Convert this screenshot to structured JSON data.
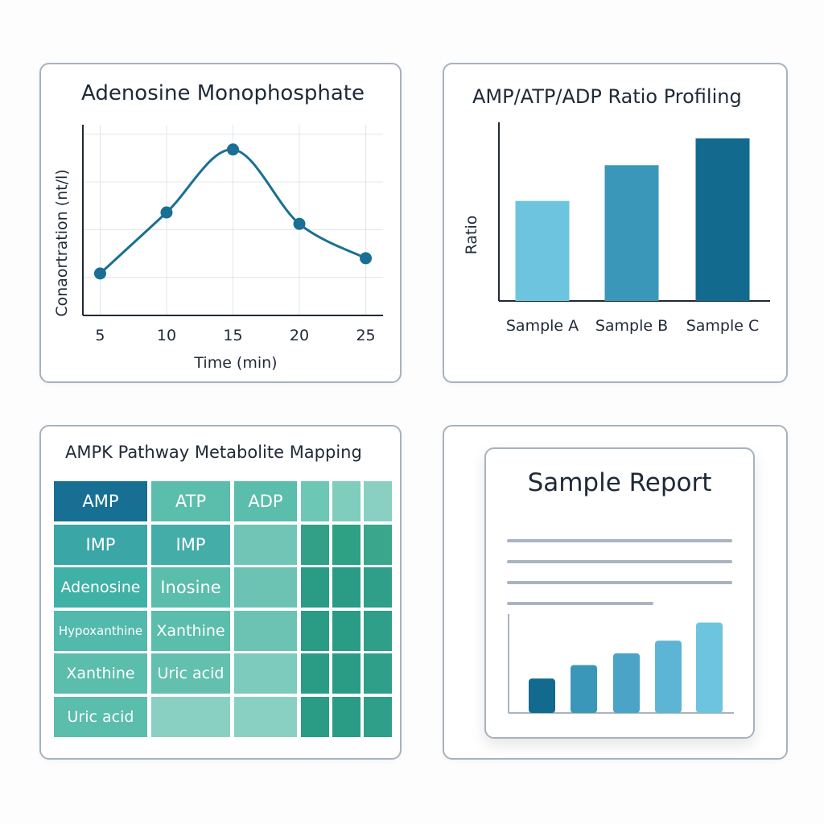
{
  "colors": {
    "dark": "#126a8e",
    "mid": "#3a97ba",
    "light": "#6cc4de",
    "line": "#1a6f95",
    "teal_dark": "#2a9c86",
    "teal_mid": "#5bbdab",
    "teal_light": "#89d0c2",
    "teal_label": "#3fb1a6"
  },
  "chart_data": [
    {
      "type": "line",
      "title": "Adenosine Monophosphate",
      "xlabel": "Time (min)",
      "ylabel": "Conaortration (nt/l)",
      "x": [
        5,
        10,
        15,
        20,
        25
      ],
      "x_ticks": [
        "5",
        "10",
        "15",
        "20",
        "25"
      ],
      "values": [
        0.22,
        0.54,
        0.87,
        0.48,
        0.3
      ],
      "ylim": [
        0,
        1
      ],
      "grid": true
    },
    {
      "type": "bar",
      "title": "AMP/ATP/ADP Ratio Profiling",
      "xlabel": "",
      "ylabel": "Ratio",
      "categories": [
        "Sample A",
        "Sample B",
        "Sample C"
      ],
      "values": [
        0.56,
        0.76,
        0.91
      ],
      "ylim": [
        0,
        1
      ],
      "bar_colors": [
        "#6cc4de",
        "#3a97ba",
        "#126a8e"
      ]
    },
    {
      "type": "heatmap",
      "title": "AMPK Pathway Metabolite Mapping",
      "rows": [
        [
          "AMP",
          "ATP",
          "ADP",
          "",
          "",
          ""
        ],
        [
          "IMP",
          "IMP",
          "",
          "",
          "",
          ""
        ],
        [
          "Adenosine",
          "Inosine",
          "",
          "",
          "",
          ""
        ],
        [
          "Hypoxanthine",
          "Xanthine",
          "",
          "",
          "",
          ""
        ],
        [
          "Xanthine",
          "Uric acid",
          "",
          "",
          "",
          ""
        ],
        [
          "Uric acid",
          "",
          "",
          "",
          "",
          ""
        ]
      ],
      "cell_colors": [
        [
          "#176f93",
          "#5bbdab",
          "#5bbdab",
          "#6cc7b5",
          "#7fcdbd",
          "#89d0c2"
        ],
        [
          "#3aa6a6",
          "#44ada8",
          "#71c5b6",
          "#31a087",
          "#2ea083",
          "#3aa68c"
        ],
        [
          "#3fb1a6",
          "#5bbdab",
          "#6cc3b4",
          "#2a9c86",
          "#2a9c86",
          "#2f9f89"
        ],
        [
          "#52b9ac",
          "#5bbdab",
          "#6cc3b4",
          "#2a9c86",
          "#2a9c86",
          "#2f9f89"
        ],
        [
          "#5bbdab",
          "#63c0ae",
          "#7ccbbd",
          "#2a9c86",
          "#2a9c86",
          "#2f9f89"
        ],
        [
          "#5bbdab",
          "#89d0c2",
          "#89d0c2",
          "#2a9c86",
          "#2a9c86",
          "#2f9f89"
        ]
      ]
    },
    {
      "type": "bar",
      "title": "Sample Report",
      "xlabel": "",
      "ylabel": "",
      "categories": [
        "",
        "",
        "",
        "",
        ""
      ],
      "values": [
        0.38,
        0.53,
        0.66,
        0.8,
        1.0
      ],
      "ylim": [
        0,
        1.05
      ],
      "bar_colors": [
        "#126a8e",
        "#3a97ba",
        "#4ba4c7",
        "#5db5d6",
        "#6cc4de"
      ]
    }
  ]
}
